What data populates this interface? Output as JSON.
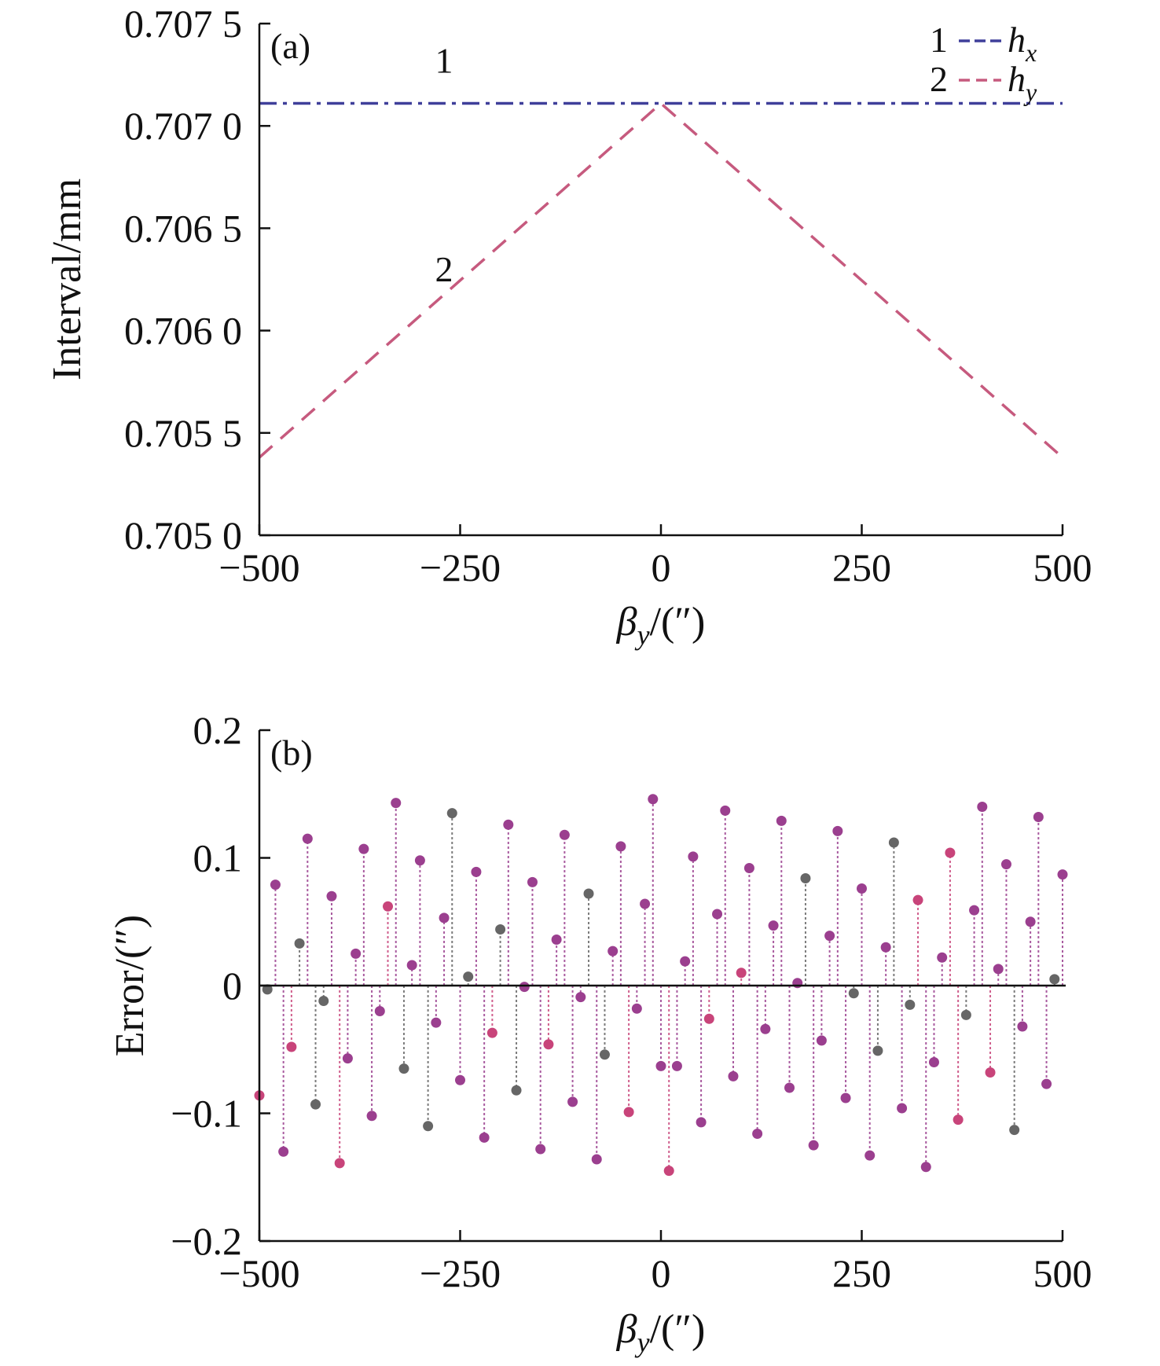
{
  "chart_data": [
    {
      "type": "line",
      "panel_label": "(a)",
      "xlabel": {
        "symbol": "β",
        "sub": "y",
        "rest": "/(″)"
      },
      "ylabel": "Interval/mm",
      "xlim": [
        -500,
        500
      ],
      "ylim": [
        0.705,
        0.7075
      ],
      "xticks": [
        -500,
        -250,
        0,
        250,
        500
      ],
      "xtick_labels": [
        "−500",
        "−250",
        "0",
        "250",
        "500"
      ],
      "yticks": [
        0.705,
        0.7055,
        0.706,
        0.7065,
        0.707,
        0.7075
      ],
      "ytick_labels": [
        "0.705 0",
        "0.705 5",
        "0.706 0",
        "0.706 5",
        "0.707 0",
        "0.707 5"
      ],
      "legend_position": "top-right",
      "series": [
        {
          "name": "h",
          "sub": "x",
          "number": "1",
          "color": "#3f3f9a",
          "x": [
            -500,
            0,
            500
          ],
          "y": [
            0.70711,
            0.70711,
            0.70711
          ]
        },
        {
          "name": "h",
          "sub": "y",
          "number": "2",
          "color": "#c65a7e",
          "x": [
            -500,
            0,
            500
          ],
          "y": [
            0.70538,
            0.70711,
            0.70538
          ]
        }
      ],
      "annotations": [
        {
          "text": "1",
          "x": -270,
          "y": 0.70726
        },
        {
          "text": "2",
          "x": -270,
          "y": 0.70624
        }
      ]
    },
    {
      "type": "scatter",
      "style": "stem",
      "panel_label": "(b)",
      "xlabel": {
        "symbol": "β",
        "sub": "y",
        "rest": "/(″)"
      },
      "ylabel": "Error/(″)",
      "xlim": [
        -500,
        500
      ],
      "ylim": [
        -0.2,
        0.2
      ],
      "xticks": [
        -500,
        -250,
        0,
        250,
        500
      ],
      "xtick_labels": [
        "−500",
        "−250",
        "0",
        "250",
        "500"
      ],
      "yticks": [
        -0.2,
        -0.1,
        0,
        0.1,
        0.2
      ],
      "ytick_labels": [
        "−0.2",
        "−0.1",
        "0",
        "0.1",
        "0.2"
      ],
      "colors": {
        "dark": "#666666",
        "mid": "#9b3f8f",
        "pink": "#c8447a"
      },
      "points": [
        {
          "x": -500,
          "y": -0.086,
          "c": "pink"
        },
        {
          "x": -490,
          "y": -0.003,
          "c": "dark"
        },
        {
          "x": -480,
          "y": 0.079,
          "c": "mid"
        },
        {
          "x": -470,
          "y": -0.13,
          "c": "mid"
        },
        {
          "x": -460,
          "y": -0.048,
          "c": "pink"
        },
        {
          "x": -450,
          "y": 0.033,
          "c": "dark"
        },
        {
          "x": -440,
          "y": 0.115,
          "c": "mid"
        },
        {
          "x": -430,
          "y": -0.093,
          "c": "dark"
        },
        {
          "x": -420,
          "y": -0.012,
          "c": "dark"
        },
        {
          "x": -410,
          "y": 0.07,
          "c": "mid"
        },
        {
          "x": -400,
          "y": -0.139,
          "c": "pink"
        },
        {
          "x": -390,
          "y": -0.057,
          "c": "mid"
        },
        {
          "x": -380,
          "y": 0.025,
          "c": "mid"
        },
        {
          "x": -370,
          "y": 0.107,
          "c": "mid"
        },
        {
          "x": -360,
          "y": -0.102,
          "c": "mid"
        },
        {
          "x": -350,
          "y": -0.02,
          "c": "mid"
        },
        {
          "x": -340,
          "y": 0.062,
          "c": "pink"
        },
        {
          "x": -330,
          "y": 0.143,
          "c": "mid"
        },
        {
          "x": -320,
          "y": -0.065,
          "c": "dark"
        },
        {
          "x": -310,
          "y": 0.016,
          "c": "mid"
        },
        {
          "x": -300,
          "y": 0.098,
          "c": "mid"
        },
        {
          "x": -290,
          "y": -0.11,
          "c": "dark"
        },
        {
          "x": -280,
          "y": -0.029,
          "c": "mid"
        },
        {
          "x": -270,
          "y": 0.053,
          "c": "mid"
        },
        {
          "x": -260,
          "y": 0.135,
          "c": "dark"
        },
        {
          "x": -250,
          "y": -0.074,
          "c": "mid"
        },
        {
          "x": -240,
          "y": 0.007,
          "c": "dark"
        },
        {
          "x": -230,
          "y": 0.089,
          "c": "mid"
        },
        {
          "x": -220,
          "y": -0.119,
          "c": "mid"
        },
        {
          "x": -210,
          "y": -0.037,
          "c": "pink"
        },
        {
          "x": -200,
          "y": 0.044,
          "c": "dark"
        },
        {
          "x": -190,
          "y": 0.126,
          "c": "mid"
        },
        {
          "x": -180,
          "y": -0.082,
          "c": "dark"
        },
        {
          "x": -170,
          "y": -0.001,
          "c": "mid"
        },
        {
          "x": -160,
          "y": 0.081,
          "c": "mid"
        },
        {
          "x": -150,
          "y": -0.128,
          "c": "mid"
        },
        {
          "x": -140,
          "y": -0.046,
          "c": "pink"
        },
        {
          "x": -130,
          "y": 0.036,
          "c": "mid"
        },
        {
          "x": -120,
          "y": 0.118,
          "c": "mid"
        },
        {
          "x": -110,
          "y": -0.091,
          "c": "mid"
        },
        {
          "x": -100,
          "y": -0.009,
          "c": "mid"
        },
        {
          "x": -90,
          "y": 0.072,
          "c": "dark"
        },
        {
          "x": -80,
          "y": -0.136,
          "c": "mid"
        },
        {
          "x": -70,
          "y": -0.054,
          "c": "dark"
        },
        {
          "x": -60,
          "y": 0.027,
          "c": "mid"
        },
        {
          "x": -50,
          "y": 0.109,
          "c": "mid"
        },
        {
          "x": -40,
          "y": -0.099,
          "c": "pink"
        },
        {
          "x": -30,
          "y": -0.018,
          "c": "mid"
        },
        {
          "x": -20,
          "y": 0.064,
          "c": "mid"
        },
        {
          "x": -10,
          "y": 0.146,
          "c": "mid"
        },
        {
          "x": 0,
          "y": -0.063,
          "c": "mid"
        },
        {
          "x": 10,
          "y": -0.145,
          "c": "pink"
        },
        {
          "x": 20,
          "y": -0.063,
          "c": "mid"
        },
        {
          "x": 30,
          "y": 0.019,
          "c": "mid"
        },
        {
          "x": 40,
          "y": 0.101,
          "c": "mid"
        },
        {
          "x": 50,
          "y": -0.107,
          "c": "mid"
        },
        {
          "x": 60,
          "y": -0.026,
          "c": "pink"
        },
        {
          "x": 70,
          "y": 0.056,
          "c": "mid"
        },
        {
          "x": 80,
          "y": 0.137,
          "c": "mid"
        },
        {
          "x": 90,
          "y": -0.071,
          "c": "mid"
        },
        {
          "x": 100,
          "y": 0.01,
          "c": "pink"
        },
        {
          "x": 110,
          "y": 0.092,
          "c": "mid"
        },
        {
          "x": 120,
          "y": -0.116,
          "c": "mid"
        },
        {
          "x": 130,
          "y": -0.034,
          "c": "mid"
        },
        {
          "x": 140,
          "y": 0.047,
          "c": "mid"
        },
        {
          "x": 150,
          "y": 0.129,
          "c": "mid"
        },
        {
          "x": 160,
          "y": -0.08,
          "c": "mid"
        },
        {
          "x": 170,
          "y": 0.002,
          "c": "mid"
        },
        {
          "x": 180,
          "y": 0.084,
          "c": "dark"
        },
        {
          "x": 190,
          "y": -0.125,
          "c": "mid"
        },
        {
          "x": 200,
          "y": -0.043,
          "c": "mid"
        },
        {
          "x": 210,
          "y": 0.039,
          "c": "mid"
        },
        {
          "x": 220,
          "y": 0.121,
          "c": "mid"
        },
        {
          "x": 230,
          "y": -0.088,
          "c": "mid"
        },
        {
          "x": 240,
          "y": -0.006,
          "c": "dark"
        },
        {
          "x": 250,
          "y": 0.076,
          "c": "mid"
        },
        {
          "x": 260,
          "y": -0.133,
          "c": "mid"
        },
        {
          "x": 270,
          "y": -0.051,
          "c": "dark"
        },
        {
          "x": 280,
          "y": 0.03,
          "c": "mid"
        },
        {
          "x": 290,
          "y": 0.112,
          "c": "dark"
        },
        {
          "x": 300,
          "y": -0.096,
          "c": "mid"
        },
        {
          "x": 310,
          "y": -0.015,
          "c": "dark"
        },
        {
          "x": 320,
          "y": 0.067,
          "c": "pink"
        },
        {
          "x": 330,
          "y": -0.142,
          "c": "mid"
        },
        {
          "x": 340,
          "y": -0.06,
          "c": "mid"
        },
        {
          "x": 350,
          "y": 0.022,
          "c": "mid"
        },
        {
          "x": 360,
          "y": 0.104,
          "c": "pink"
        },
        {
          "x": 370,
          "y": -0.105,
          "c": "pink"
        },
        {
          "x": 380,
          "y": -0.023,
          "c": "dark"
        },
        {
          "x": 390,
          "y": 0.059,
          "c": "mid"
        },
        {
          "x": 400,
          "y": 0.14,
          "c": "mid"
        },
        {
          "x": 410,
          "y": -0.068,
          "c": "pink"
        },
        {
          "x": 420,
          "y": 0.013,
          "c": "mid"
        },
        {
          "x": 430,
          "y": 0.095,
          "c": "mid"
        },
        {
          "x": 440,
          "y": -0.113,
          "c": "dark"
        },
        {
          "x": 450,
          "y": -0.032,
          "c": "mid"
        },
        {
          "x": 460,
          "y": 0.05,
          "c": "mid"
        },
        {
          "x": 470,
          "y": 0.132,
          "c": "mid"
        },
        {
          "x": 480,
          "y": -0.077,
          "c": "mid"
        },
        {
          "x": 490,
          "y": 0.005,
          "c": "dark"
        },
        {
          "x": 500,
          "y": 0.087,
          "c": "mid"
        }
      ]
    }
  ]
}
